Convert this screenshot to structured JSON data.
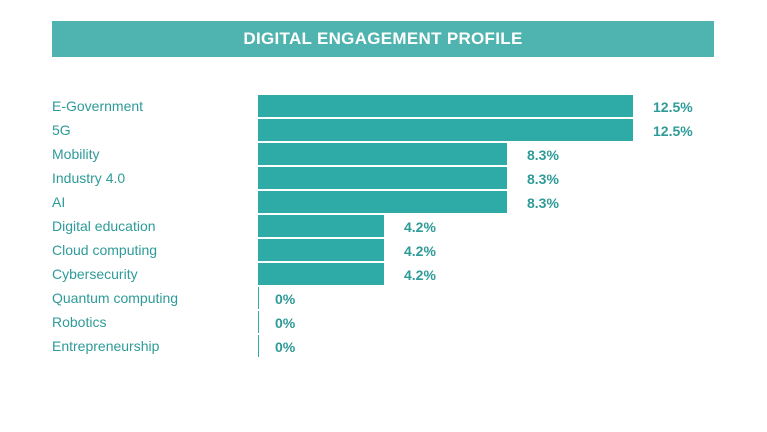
{
  "title": "DIGITAL ENGAGEMENT PROFILE",
  "colors": {
    "banner": "#4fb3b0",
    "bar": "#2eaaa7",
    "label": "#2e9b98",
    "value": "#2e9b98",
    "axis": "#2eaaa7"
  },
  "chart_data": {
    "type": "bar",
    "orientation": "horizontal",
    "title": "DIGITAL ENGAGEMENT PROFILE",
    "xlabel": "",
    "ylabel": "",
    "grid": false,
    "xlim": [
      0,
      12.5
    ],
    "categories": [
      "E-Government",
      "5G",
      "Mobility",
      "Industry 4.0",
      "AI",
      "Digital education",
      "Cloud computing",
      "Cybersecurity",
      "Quantum computing",
      "Robotics",
      "Entrepreneurship"
    ],
    "values": [
      12.5,
      12.5,
      8.3,
      8.3,
      8.3,
      4.2,
      4.2,
      4.2,
      0,
      0,
      0
    ],
    "value_labels": [
      "12.5%",
      "12.5%",
      "8.3%",
      "8.3%",
      "8.3%",
      "4.2%",
      "4.2%",
      "4.2%",
      "0%",
      "0%",
      "0%"
    ]
  }
}
